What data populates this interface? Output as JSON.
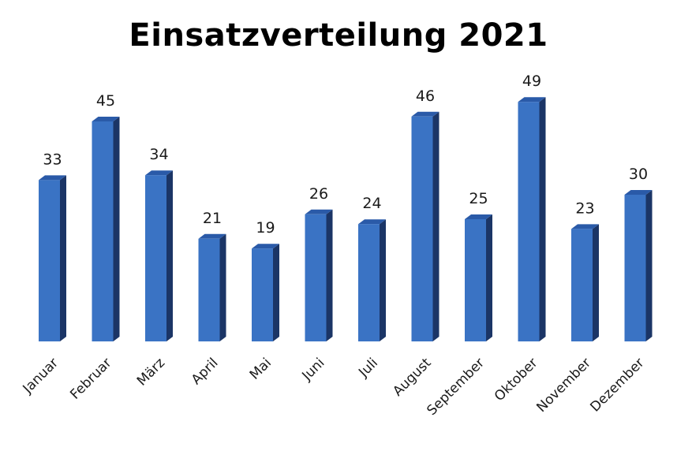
{
  "chart_data": {
    "type": "bar",
    "title": "Einsatzverteilung 2021",
    "xlabel": "",
    "ylabel": "",
    "categories": [
      "Januar",
      "Februar",
      "März",
      "April",
      "Mai",
      "Juni",
      "Juli",
      "August",
      "September",
      "Oktober",
      "November",
      "Dezember"
    ],
    "values": [
      33,
      45,
      34,
      21,
      19,
      26,
      24,
      46,
      25,
      49,
      23,
      30
    ],
    "ylim": [
      0,
      50
    ],
    "grid": false,
    "legend": "none",
    "style": "3d-bars",
    "colors": {
      "bar_front": "#3a73c4",
      "bar_side": "#1b3566",
      "bar_top": "#2a5aa8"
    }
  }
}
